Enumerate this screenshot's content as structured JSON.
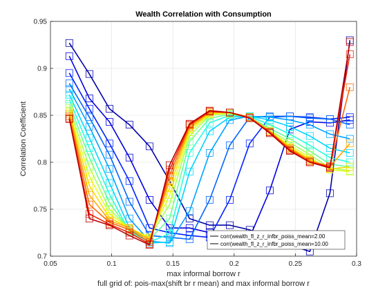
{
  "chart_data": {
    "type": "line",
    "title": "Wealth Correlation with Consumption",
    "xlabel": "max informal borrow r",
    "xlabel2": "full grid of: pois-max(shift br r mean) and max informal borrow r",
    "ylabel": "Correlation Coefficient",
    "xlim": [
      0.05,
      0.3
    ],
    "ylim": [
      0.7,
      0.95
    ],
    "xticks": [
      "0.05",
      "0.1",
      "0.15",
      "0.2",
      "0.25",
      "0.3"
    ],
    "yticks": [
      "0.7",
      "0.75",
      "0.8",
      "0.85",
      "0.9",
      "0.95"
    ],
    "grid": true,
    "marker": "square",
    "x": [
      0.0654,
      0.0818,
      0.0982,
      0.1145,
      0.1309,
      0.1473,
      0.1636,
      0.18,
      0.1964,
      0.2127,
      0.2291,
      0.2455,
      0.2618,
      0.2782,
      0.2945
    ],
    "legend": {
      "placement": "bottom-right",
      "entries": [
        "corr(wealth_fl_z_r_infbr_poiss_mean=2.00",
        "corr(wealth_fl_z_r_infbr_poiss_mean=10.00"
      ]
    },
    "series": [
      {
        "color": "#0000aa",
        "values": [
          0.927,
          0.894,
          0.857,
          0.84,
          0.817,
          0.78,
          0.74,
          0.733,
          0.733,
          0.728,
          0.72,
          0.712,
          0.705,
          0.767,
          0.93
        ]
      },
      {
        "color": "#0000dd",
        "values": [
          0.913,
          0.868,
          0.843,
          0.805,
          0.76,
          0.73,
          0.73,
          0.725,
          0.722,
          0.72,
          0.77,
          0.835,
          0.843,
          0.842,
          0.845
        ]
      },
      {
        "color": "#0022ff",
        "values": [
          0.895,
          0.857,
          0.82,
          0.78,
          0.73,
          0.725,
          0.722,
          0.72,
          0.76,
          0.82,
          0.848,
          0.849,
          0.848,
          0.846,
          0.848
        ]
      },
      {
        "color": "#0066ff",
        "values": [
          0.884,
          0.848,
          0.808,
          0.758,
          0.722,
          0.72,
          0.718,
          0.76,
          0.818,
          0.848,
          0.849,
          0.849,
          0.847,
          0.846,
          0.84
        ]
      },
      {
        "color": "#00a0ff",
        "values": [
          0.878,
          0.838,
          0.793,
          0.74,
          0.716,
          0.714,
          0.748,
          0.81,
          0.845,
          0.849,
          0.848,
          0.845,
          0.84,
          0.83,
          0.825
        ]
      },
      {
        "color": "#00d4ff",
        "values": [
          0.872,
          0.826,
          0.778,
          0.73,
          0.714,
          0.715,
          0.79,
          0.833,
          0.848,
          0.849,
          0.845,
          0.838,
          0.828,
          0.815,
          0.81
        ]
      },
      {
        "color": "#22ffdd",
        "values": [
          0.867,
          0.815,
          0.766,
          0.726,
          0.715,
          0.724,
          0.81,
          0.842,
          0.85,
          0.849,
          0.84,
          0.83,
          0.818,
          0.805,
          0.8
        ]
      },
      {
        "color": "#66ff99",
        "values": [
          0.862,
          0.805,
          0.757,
          0.727,
          0.718,
          0.74,
          0.822,
          0.847,
          0.851,
          0.848,
          0.836,
          0.825,
          0.812,
          0.798,
          0.795
        ]
      },
      {
        "color": "#aaff55",
        "values": [
          0.858,
          0.795,
          0.75,
          0.729,
          0.72,
          0.755,
          0.828,
          0.85,
          0.852,
          0.848,
          0.834,
          0.821,
          0.808,
          0.794,
          0.791
        ]
      },
      {
        "color": "#ddff22",
        "values": [
          0.855,
          0.785,
          0.745,
          0.73,
          0.72,
          0.765,
          0.832,
          0.851,
          0.852,
          0.848,
          0.833,
          0.818,
          0.805,
          0.792,
          0.79
        ]
      },
      {
        "color": "#ffdd00",
        "values": [
          0.853,
          0.775,
          0.741,
          0.73,
          0.719,
          0.773,
          0.835,
          0.852,
          0.853,
          0.848,
          0.833,
          0.816,
          0.803,
          0.793,
          0.795
        ]
      },
      {
        "color": "#ffaa00",
        "values": [
          0.851,
          0.765,
          0.738,
          0.73,
          0.717,
          0.78,
          0.837,
          0.853,
          0.853,
          0.848,
          0.833,
          0.815,
          0.802,
          0.795,
          0.82
        ]
      },
      {
        "color": "#ff6600",
        "values": [
          0.849,
          0.755,
          0.736,
          0.728,
          0.715,
          0.786,
          0.839,
          0.854,
          0.853,
          0.848,
          0.832,
          0.814,
          0.801,
          0.796,
          0.88
        ]
      },
      {
        "color": "#ee2200",
        "values": [
          0.847,
          0.745,
          0.734,
          0.725,
          0.713,
          0.792,
          0.84,
          0.854,
          0.853,
          0.847,
          0.832,
          0.813,
          0.8,
          0.795,
          0.915
        ]
      },
      {
        "color": "#bb0000",
        "values": [
          0.846,
          0.74,
          0.733,
          0.722,
          0.712,
          0.797,
          0.841,
          0.855,
          0.853,
          0.847,
          0.831,
          0.812,
          0.8,
          0.794,
          0.928
        ]
      }
    ]
  }
}
